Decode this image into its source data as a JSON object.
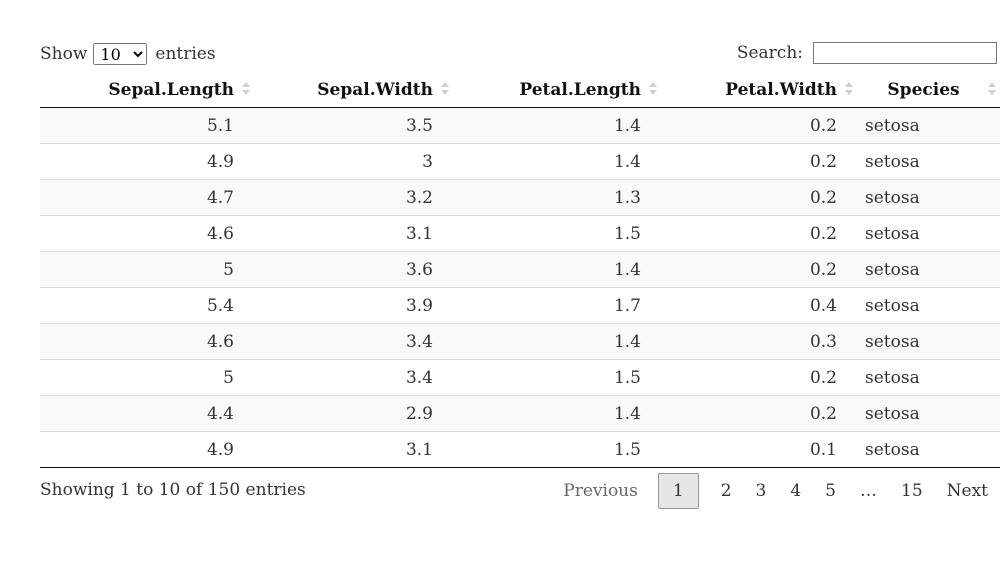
{
  "length": {
    "show_label": "Show",
    "selected": "10",
    "entries_label": "entries"
  },
  "search": {
    "label": "Search:",
    "value": ""
  },
  "columns": [
    "Sepal.Length",
    "Sepal.Width",
    "Petal.Length",
    "Petal.Width",
    "Species"
  ],
  "rows": [
    [
      "5.1",
      "3.5",
      "1.4",
      "0.2",
      "setosa"
    ],
    [
      "4.9",
      "3",
      "1.4",
      "0.2",
      "setosa"
    ],
    [
      "4.7",
      "3.2",
      "1.3",
      "0.2",
      "setosa"
    ],
    [
      "4.6",
      "3.1",
      "1.5",
      "0.2",
      "setosa"
    ],
    [
      "5",
      "3.6",
      "1.4",
      "0.2",
      "setosa"
    ],
    [
      "5.4",
      "3.9",
      "1.7",
      "0.4",
      "setosa"
    ],
    [
      "4.6",
      "3.4",
      "1.4",
      "0.3",
      "setosa"
    ],
    [
      "5",
      "3.4",
      "1.5",
      "0.2",
      "setosa"
    ],
    [
      "4.4",
      "2.9",
      "1.4",
      "0.2",
      "setosa"
    ],
    [
      "4.9",
      "3.1",
      "1.5",
      "0.1",
      "setosa"
    ]
  ],
  "info": "Showing 1 to 10 of 150 entries",
  "pagination": {
    "previous": "Previous",
    "pages": [
      "1",
      "2",
      "3",
      "4",
      "5",
      "…",
      "15"
    ],
    "next": "Next",
    "current": "1"
  }
}
